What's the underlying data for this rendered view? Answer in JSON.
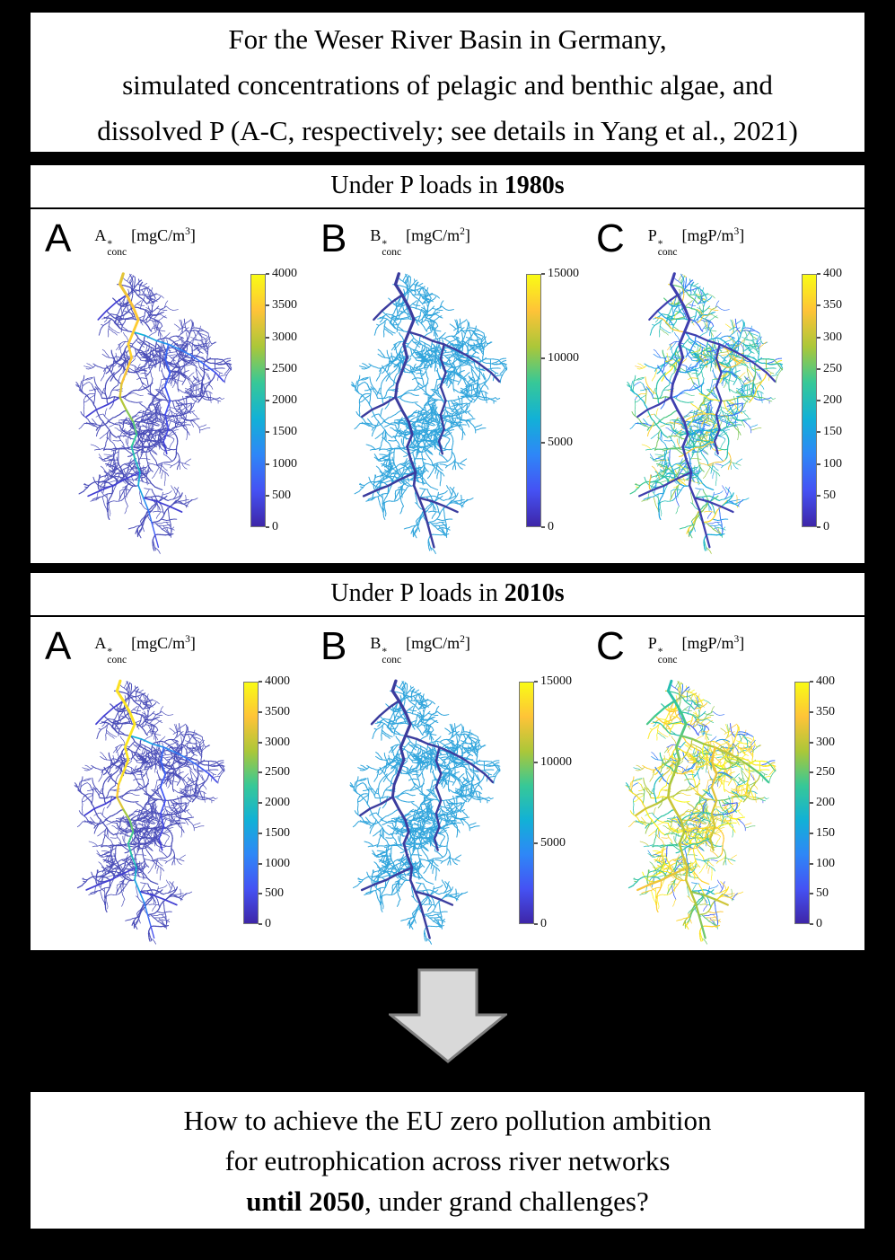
{
  "figure": {
    "title_box": {
      "lines": [
        "For the Weser River Basin in Germany,",
        "simulated concentrations of pelagic and benthic algae, and",
        "dissolved P (A-C, respectively; see details in Yang et al., 2021)"
      ]
    },
    "sections": [
      {
        "id": "p-loads-1980s",
        "header": {
          "prefix": "Under P loads in ",
          "bold": "1980s"
        },
        "panels": [
          {
            "letter": "A",
            "title": {
              "base": "A",
              "sup": "*",
              "sub": "conc",
              "unit_open": "[mgC/m",
              "unit_exp": "3",
              "unit_close": "]"
            },
            "colorbar": {
              "min": 0,
              "max": 4000,
              "ticks": [
                "4000",
                "3500",
                "3000",
                "2500",
                "2000",
                "1500",
                "1000",
                "500",
                "0"
              ]
            },
            "map": {
              "style": "pelagic_1980s",
              "variable": "pelagic algae concentration"
            }
          },
          {
            "letter": "B",
            "title": {
              "base": "B",
              "sup": "*",
              "sub": "conc",
              "unit_open": "[mgC/m",
              "unit_exp": "2",
              "unit_close": "]"
            },
            "colorbar": {
              "min": 0,
              "max": 15000,
              "ticks": [
                "15000",
                "10000",
                "5000",
                "0"
              ]
            },
            "map": {
              "style": "benthic",
              "variable": "benthic algae concentration"
            }
          },
          {
            "letter": "C",
            "title": {
              "base": "P",
              "sup": "*",
              "sub": "conc",
              "unit_open": "[mgP/m",
              "unit_exp": "3",
              "unit_close": "]"
            },
            "colorbar": {
              "min": 0,
              "max": 400,
              "ticks": [
                "400",
                "350",
                "300",
                "250",
                "200",
                "150",
                "100",
                "50",
                "0"
              ]
            },
            "map": {
              "style": "phosphorus_1980s",
              "variable": "dissolved P concentration"
            }
          }
        ]
      },
      {
        "id": "p-loads-2010s",
        "header": {
          "prefix": "Under P loads in ",
          "bold": "2010s"
        },
        "panels": [
          {
            "letter": "A",
            "title": {
              "base": "A",
              "sup": "*",
              "sub": "conc",
              "unit_open": "[mgC/m",
              "unit_exp": "3",
              "unit_close": "]"
            },
            "colorbar": {
              "min": 0,
              "max": 4000,
              "ticks": [
                "4000",
                "3500",
                "3000",
                "2500",
                "2000",
                "1500",
                "1000",
                "500",
                "0"
              ]
            },
            "map": {
              "style": "pelagic_2010s",
              "variable": "pelagic algae concentration"
            }
          },
          {
            "letter": "B",
            "title": {
              "base": "B",
              "sup": "*",
              "sub": "conc",
              "unit_open": "[mgC/m",
              "unit_exp": "2",
              "unit_close": "]"
            },
            "colorbar": {
              "min": 0,
              "max": 15000,
              "ticks": [
                "15000",
                "10000",
                "5000",
                "0"
              ]
            },
            "map": {
              "style": "benthic",
              "variable": "benthic algae concentration"
            }
          },
          {
            "letter": "C",
            "title": {
              "base": "P",
              "sup": "*",
              "sub": "conc",
              "unit_open": "[mgP/m",
              "unit_exp": "3",
              "unit_close": "]"
            },
            "colorbar": {
              "min": 0,
              "max": 400,
              "ticks": [
                "400",
                "350",
                "300",
                "250",
                "200",
                "150",
                "100",
                "50",
                "0"
              ]
            },
            "map": {
              "style": "phosphorus_2010s",
              "variable": "dissolved P concentration"
            }
          }
        ]
      }
    ],
    "arrow": {
      "fill": "#d9d9d9",
      "stroke": "#7f7f7f"
    },
    "question_box": {
      "line1": "How to achieve the EU zero pollution ambition",
      "line2": "for eutrophication across river networks",
      "line3_bold": "until 2050",
      "line3_rest": ", under grand challenges?"
    }
  },
  "colormap_parula": [
    "#3e26a8",
    "#4552f4",
    "#2e87f7",
    "#12b1d6",
    "#37c897",
    "#abc739",
    "#fec338",
    "#f9fb15"
  ],
  "map_styles": {
    "pelagic_1980s": {
      "trib": {
        "mode": "hex",
        "hex": "#4a4db8"
      },
      "stem": {
        "mode": "profile",
        "profile": [
          [
            0,
            0.8
          ],
          [
            0.15,
            0.87
          ],
          [
            0.3,
            0.9
          ],
          [
            0.42,
            0.82
          ],
          [
            0.5,
            0.7
          ],
          [
            0.6,
            0.58
          ],
          [
            0.7,
            0.48
          ],
          [
            0.8,
            0.38
          ],
          [
            0.9,
            0.22
          ],
          [
            1,
            0.1
          ]
        ]
      },
      "sec": {
        "mode": "profiles",
        "profiles": [
          [
            [
              0,
              0.45
            ],
            [
              1,
              0.1
            ]
          ],
          [
            [
              0,
              0.22
            ],
            [
              1,
              0.08
            ]
          ],
          [
            [
              0,
              0.08
            ],
            [
              1,
              0.08
            ]
          ],
          [
            [
              0,
              0.08
            ],
            [
              1,
              0.08
            ]
          ],
          [
            [
              0,
              0.08
            ],
            [
              1,
              0.08
            ]
          ],
          [
            [
              0,
              0.08
            ],
            [
              1,
              0.08
            ]
          ]
        ]
      },
      "stem_w": [
        3.2,
        1.3
      ],
      "sec_w": 1.7,
      "trib_w": [
        0.65,
        0.75,
        0.95,
        1.2
      ]
    },
    "pelagic_2010s": {
      "trib": {
        "mode": "hex",
        "hex": "#4a4db8"
      },
      "stem": {
        "mode": "profile",
        "profile": [
          [
            0,
            0.93
          ],
          [
            0.25,
            0.95
          ],
          [
            0.4,
            0.93
          ],
          [
            0.48,
            0.8
          ],
          [
            0.55,
            0.66
          ],
          [
            0.65,
            0.55
          ],
          [
            0.75,
            0.45
          ],
          [
            0.85,
            0.33
          ],
          [
            1,
            0.1
          ]
        ]
      },
      "sec": {
        "mode": "profiles",
        "profiles": [
          [
            [
              0,
              0.45
            ],
            [
              1,
              0.1
            ]
          ],
          [
            [
              0,
              0.22
            ],
            [
              1,
              0.08
            ]
          ],
          [
            [
              0,
              0.08
            ],
            [
              1,
              0.08
            ]
          ],
          [
            [
              0,
              0.08
            ],
            [
              1,
              0.08
            ]
          ],
          [
            [
              0,
              0.08
            ],
            [
              1,
              0.08
            ]
          ],
          [
            [
              0,
              0.08
            ],
            [
              1,
              0.08
            ]
          ]
        ]
      },
      "stem_w": [
        3.2,
        1.3
      ],
      "sec_w": 1.7,
      "trib_w": [
        0.65,
        0.75,
        0.95,
        1.2
      ]
    },
    "benthic": {
      "trib": {
        "mode": "hex",
        "hex": "#31a5dc"
      },
      "stem": {
        "mode": "hex",
        "hex": "#3b3c9e"
      },
      "sec": {
        "mode": "hex",
        "hex": "#3b3c9e"
      },
      "stem_w": [
        3.4,
        2.4
      ],
      "sec_w": 2.4,
      "trib_w": 1.0
    },
    "phosphorus_1980s": {
      "trib": {
        "mode": "mixture",
        "buckets": [
          {
            "p": 0.42,
            "lo": 0.35,
            "hi": 0.55
          },
          {
            "p": 0.3,
            "lo": 0.5,
            "hi": 0.72
          },
          {
            "p": 0.14,
            "lo": 0.82,
            "hi": 0.98
          },
          {
            "p": 0.14,
            "lo": 0.18,
            "hi": 0.32
          }
        ]
      },
      "stem": {
        "mode": "hex",
        "hex": "#3f3fae"
      },
      "sec": {
        "mode": "hex",
        "hex": "#3f3fae"
      },
      "stem_w": [
        3.2,
        2.2
      ],
      "sec_w": 2.2,
      "trib_w": [
        0.65,
        0.75,
        0.95,
        1.2
      ]
    },
    "phosphorus_2010s": {
      "trib": {
        "mode": "mixture",
        "buckets": [
          {
            "p": 0.5,
            "lo": 0.86,
            "hi": 1.0
          },
          {
            "p": 0.27,
            "lo": 0.45,
            "hi": 0.65
          },
          {
            "p": 0.13,
            "lo": 0.62,
            "hi": 0.8
          },
          {
            "p": 0.1,
            "lo": 0.15,
            "hi": 0.35
          }
        ]
      },
      "stem": {
        "mode": "profile",
        "profile": [
          [
            0,
            0.5
          ],
          [
            0.15,
            0.58
          ],
          [
            0.3,
            0.66
          ],
          [
            0.5,
            0.78
          ],
          [
            0.62,
            0.72
          ],
          [
            0.75,
            0.8
          ],
          [
            0.9,
            0.7
          ],
          [
            1,
            0.62
          ]
        ]
      },
      "sec": {
        "mode": "profiles",
        "profiles": [
          [
            [
              0,
              0.62
            ],
            [
              0.5,
              0.78
            ],
            [
              1,
              0.55
            ]
          ],
          [
            [
              0,
              0.85
            ],
            [
              1,
              0.75
            ]
          ],
          [
            [
              0,
              0.7
            ],
            [
              1,
              0.8
            ]
          ],
          [
            [
              0,
              0.8
            ],
            [
              1,
              0.85
            ]
          ],
          [
            [
              0,
              0.65
            ],
            [
              1,
              0.8
            ]
          ],
          [
            [
              0,
              0.55
            ],
            [
              1,
              0.6
            ]
          ]
        ]
      },
      "stem_w": [
        3.0,
        2.2
      ],
      "sec_w": 2.2,
      "trib_w": [
        0.65,
        0.75,
        0.95,
        1.2
      ]
    }
  }
}
